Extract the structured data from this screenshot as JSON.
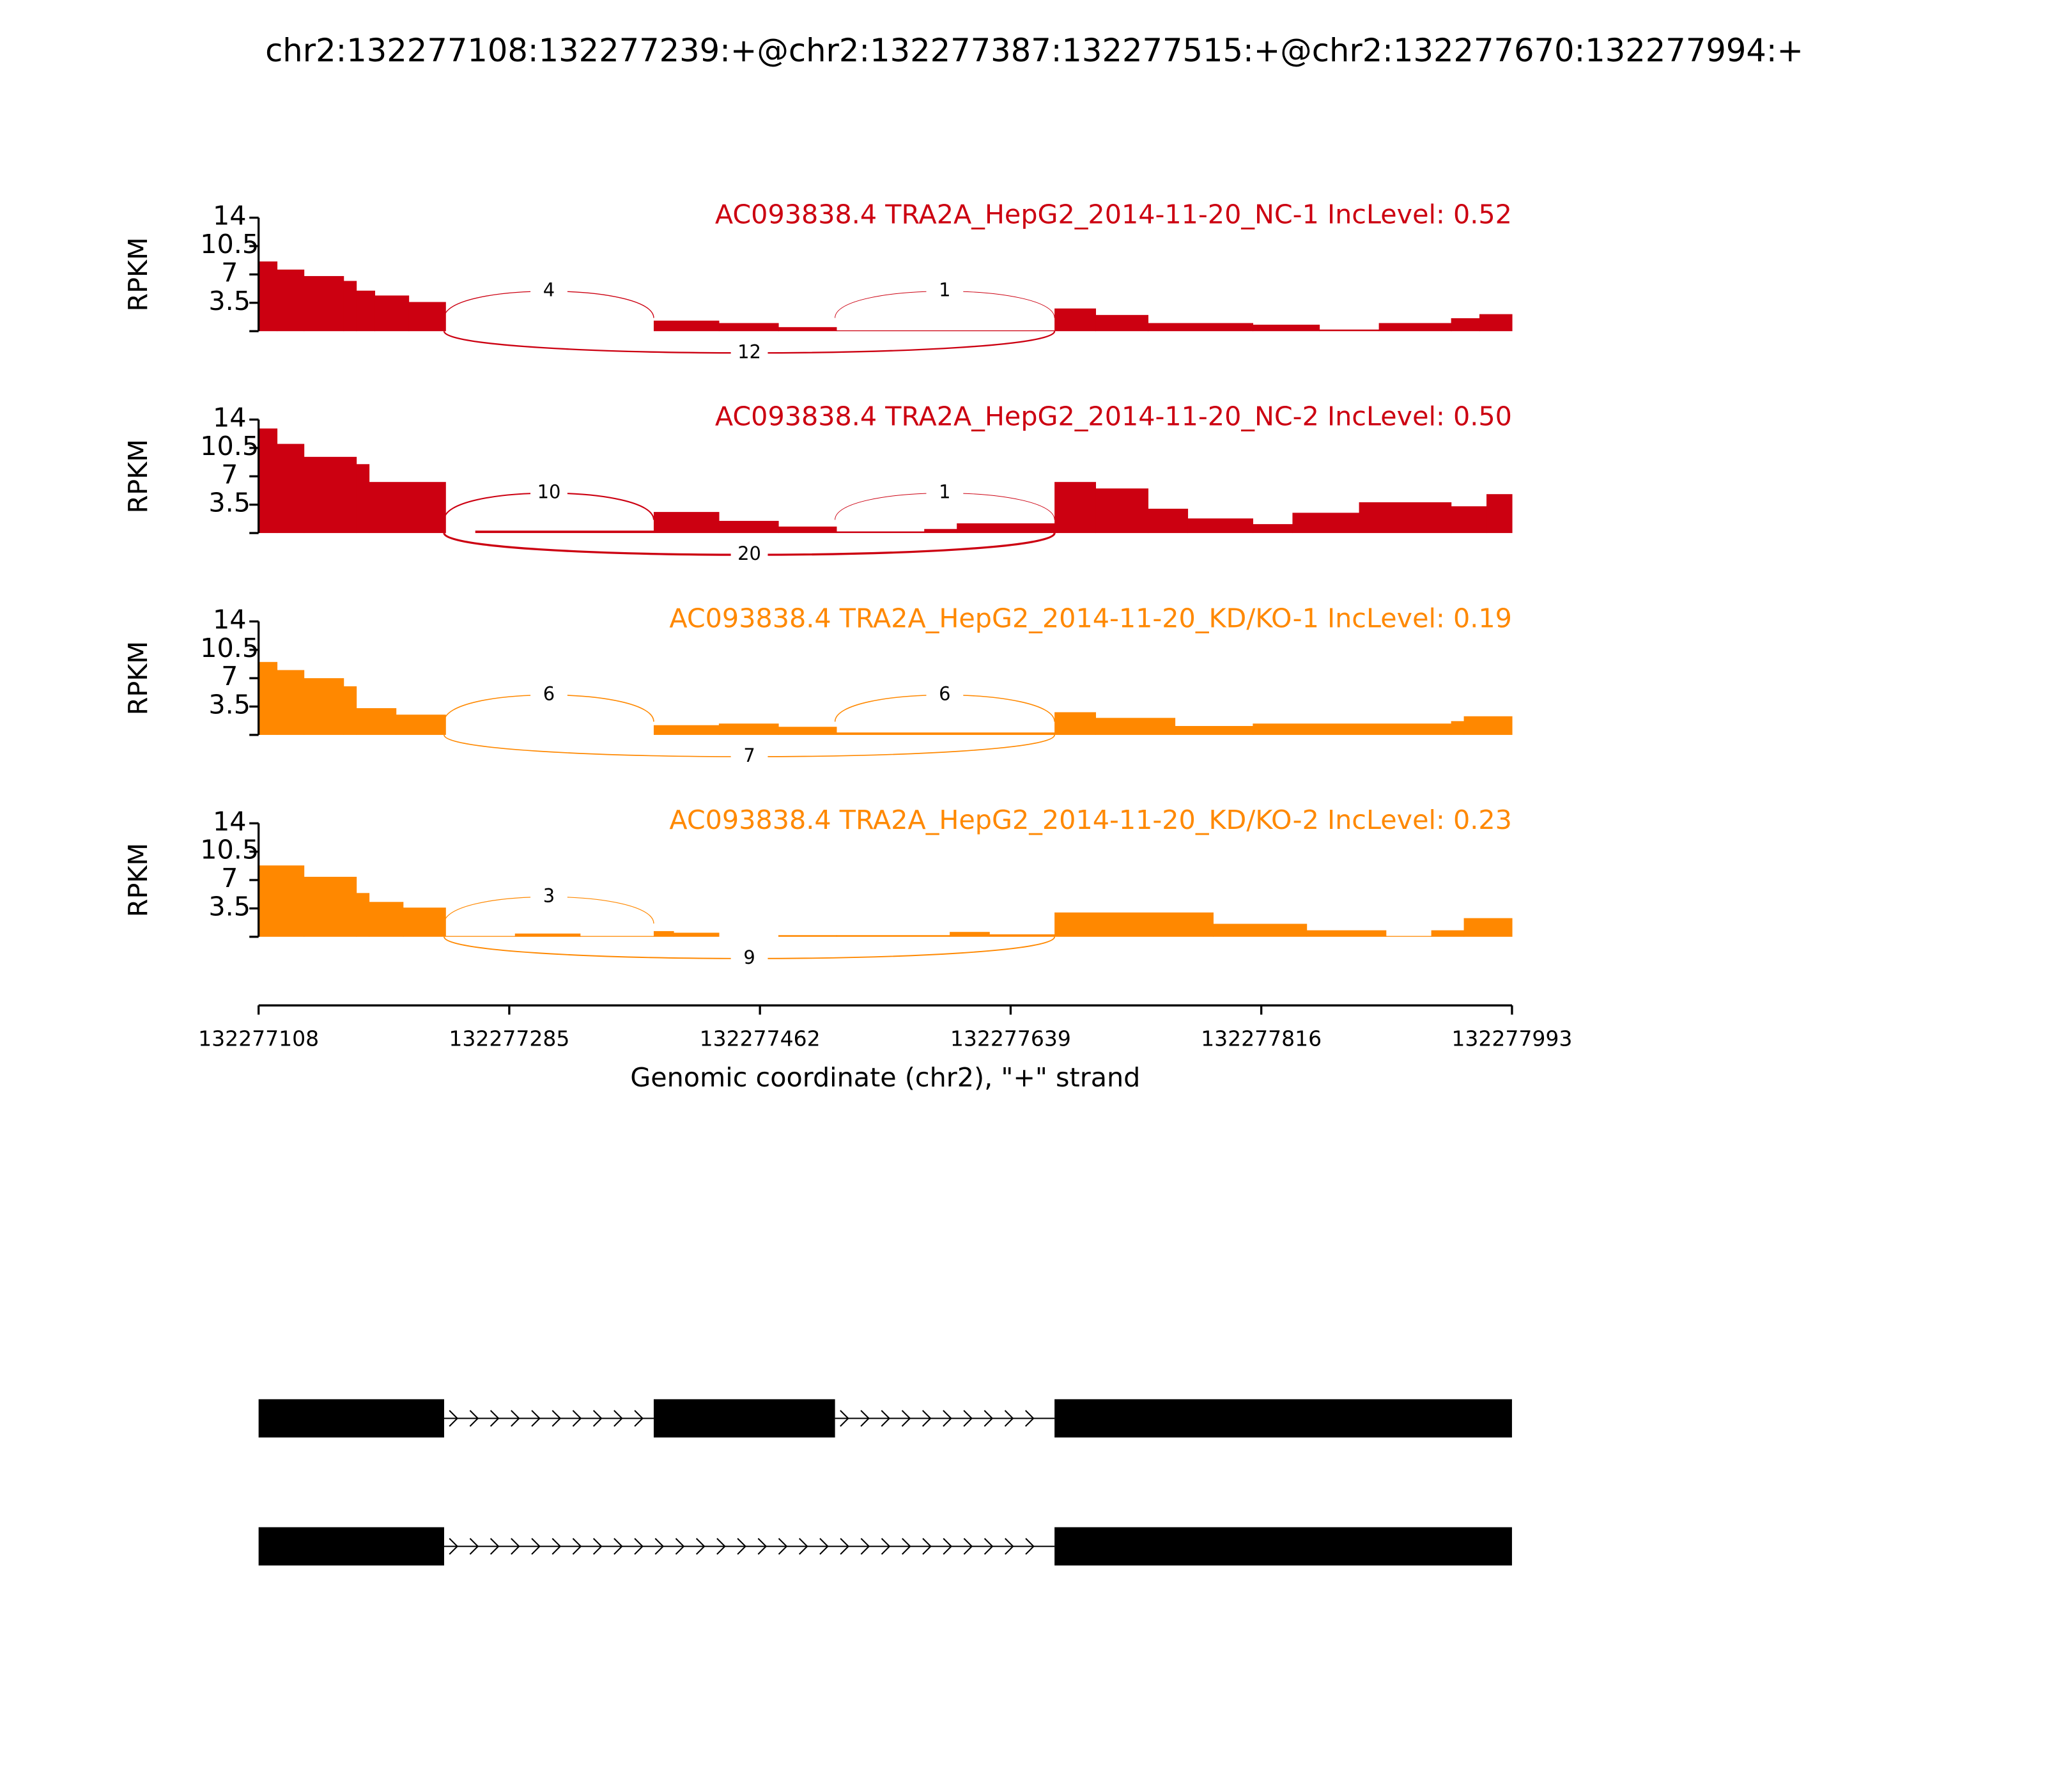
{
  "chart_data": {
    "type": "sashimi",
    "title": "chr2:132277108:132277239:+@chr2:132277387:132277515:+@chr2:132277670:132277994:+",
    "xlabel": "Genomic coordinate (chr2), \"+\" strand",
    "xlim": [
      132277108,
      132277993
    ],
    "xticks": [
      132277108,
      132277285,
      132277462,
      132277639,
      132277816,
      132277993
    ],
    "tracks": [
      {
        "name": "AC093838.4 TRA2A_HepG2_2014-11-20_NC-1 IncLevel: 0.52",
        "color": "#cc0011",
        "ylabel": "RPKM",
        "ylim": [
          0,
          14
        ],
        "yticks": [
          3.5,
          7,
          10.5,
          14
        ],
        "x": [
          132277108,
          132277121,
          132277140,
          132277168,
          132277177,
          132277190,
          132277214,
          132277240,
          132277387,
          132277433,
          132277475,
          132277516,
          132277670,
          132277699,
          132277736,
          132277810,
          132277857,
          132277899,
          132277950,
          132277970
        ],
        "values": [
          8.6,
          7.6,
          6.8,
          6.2,
          5.0,
          4.4,
          3.6,
          0,
          1.3,
          1.0,
          0.5,
          0.1,
          2.8,
          2.0,
          1.0,
          0.8,
          0.2,
          1.0,
          1.6,
          2.1
        ],
        "junctions": [
          {
            "start": 132277239,
            "end": 132277387,
            "count": 4,
            "side": "above"
          },
          {
            "start": 132277515,
            "end": 132277670,
            "count": 1,
            "side": "above"
          },
          {
            "start": 132277239,
            "end": 132277670,
            "count": 12,
            "side": "below"
          }
        ]
      },
      {
        "name": "AC093838.4 TRA2A_HepG2_2014-11-20_NC-2 IncLevel: 0.50",
        "color": "#cc0011",
        "ylabel": "RPKM",
        "ylim": [
          0,
          14
        ],
        "yticks": [
          3.5,
          7,
          10.5,
          14
        ],
        "x": [
          132277108,
          132277121,
          132277140,
          132277177,
          132277186,
          132277240,
          132277261,
          132277387,
          132277433,
          132277475,
          132277516,
          132277578,
          132277601,
          132277670,
          132277699,
          132277736,
          132277764,
          132277810,
          132277838,
          132277885,
          132277950,
          132277975
        ],
        "values": [
          12.9,
          11.0,
          9.4,
          8.5,
          6.3,
          0,
          0.3,
          2.6,
          1.5,
          0.8,
          0.2,
          0.5,
          1.2,
          6.3,
          5.5,
          3.0,
          1.8,
          1.1,
          2.5,
          3.8,
          3.3,
          4.8
        ],
        "junctions": [
          {
            "start": 132277239,
            "end": 132277387,
            "count": 10,
            "side": "above"
          },
          {
            "start": 132277515,
            "end": 132277670,
            "count": 1,
            "side": "above"
          },
          {
            "start": 132277239,
            "end": 132277670,
            "count": 20,
            "side": "below"
          }
        ]
      },
      {
        "name": "AC093838.4 TRA2A_HepG2_2014-11-20_KD/KO-1 IncLevel: 0.19",
        "color": "#ff8800",
        "ylabel": "RPKM",
        "ylim": [
          0,
          14
        ],
        "yticks": [
          3.5,
          7,
          10.5,
          14
        ],
        "x": [
          132277108,
          132277121,
          132277140,
          132277168,
          132277177,
          132277205,
          132277240,
          132277387,
          132277433,
          132277475,
          132277516,
          132277670,
          132277699,
          132277755,
          132277810,
          132277950,
          132277959
        ],
        "values": [
          9.0,
          8.0,
          7.0,
          6.0,
          3.3,
          2.5,
          0,
          1.2,
          1.4,
          1.0,
          0.3,
          2.8,
          2.1,
          1.1,
          1.4,
          1.7,
          2.3
        ],
        "junctions": [
          {
            "start": 132277239,
            "end": 132277387,
            "count": 6,
            "side": "above"
          },
          {
            "start": 132277515,
            "end": 132277670,
            "count": 6,
            "side": "above"
          },
          {
            "start": 132277239,
            "end": 132277670,
            "count": 7,
            "side": "below"
          }
        ]
      },
      {
        "name": "AC093838.4 TRA2A_HepG2_2014-11-20_KD/KO-2 IncLevel: 0.23",
        "color": "#ff8800",
        "ylabel": "RPKM",
        "ylim": [
          0,
          14
        ],
        "yticks": [
          3.5,
          7,
          10.5,
          14
        ],
        "x": [
          132277108,
          132277140,
          132277177,
          132277186,
          132277210,
          132277240,
          132277289,
          132277335,
          132277387,
          132277401,
          132277433,
          132277475,
          132277516,
          132277596,
          132277624,
          132277670,
          132277782,
          132277848,
          132277904,
          132277936,
          132277959
        ],
        "values": [
          8.8,
          7.4,
          5.4,
          4.3,
          3.6,
          0.1,
          0.4,
          0.1,
          0.7,
          0.5,
          0,
          0.2,
          0.2,
          0.6,
          0.3,
          3.0,
          1.6,
          0.8,
          0.1,
          0.8,
          2.3
        ],
        "junctions": [
          {
            "start": 132277239,
            "end": 132277387,
            "count": 3,
            "side": "above"
          },
          {
            "start": 132277239,
            "end": 132277670,
            "count": 9,
            "side": "below"
          }
        ]
      }
    ],
    "transcripts": [
      {
        "exons": [
          [
            132277108,
            132277239
          ],
          [
            132277387,
            132277515
          ],
          [
            132277670,
            132277994
          ]
        ]
      },
      {
        "exons": [
          [
            132277108,
            132277239
          ],
          [
            132277670,
            132277994
          ]
        ]
      }
    ]
  }
}
